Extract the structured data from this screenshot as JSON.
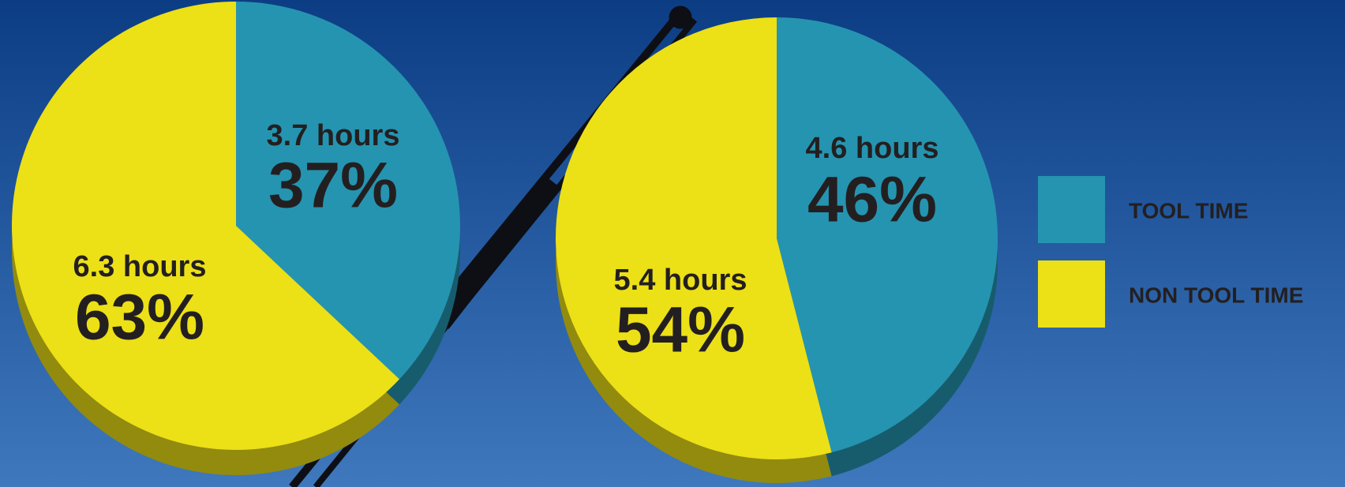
{
  "chart_data": [
    {
      "type": "pie",
      "categories": [
        "TOOL TIME",
        "NON TOOL TIME"
      ],
      "values": [
        37,
        63
      ],
      "value_labels": [
        "37%",
        "63%"
      ],
      "hour_labels": [
        "3.7 hours",
        "6.3 hours"
      ],
      "colors": [
        "#2594b0",
        "#ece017"
      ],
      "legend": "right"
    },
    {
      "type": "pie",
      "values": [
        46,
        54
      ],
      "value_labels": [
        "46%",
        "54%"
      ],
      "hour_labels": [
        "4.6 hours",
        "5.4 hours"
      ],
      "colors": [
        "#2594b0",
        "#ece017"
      ]
    }
  ]
}
